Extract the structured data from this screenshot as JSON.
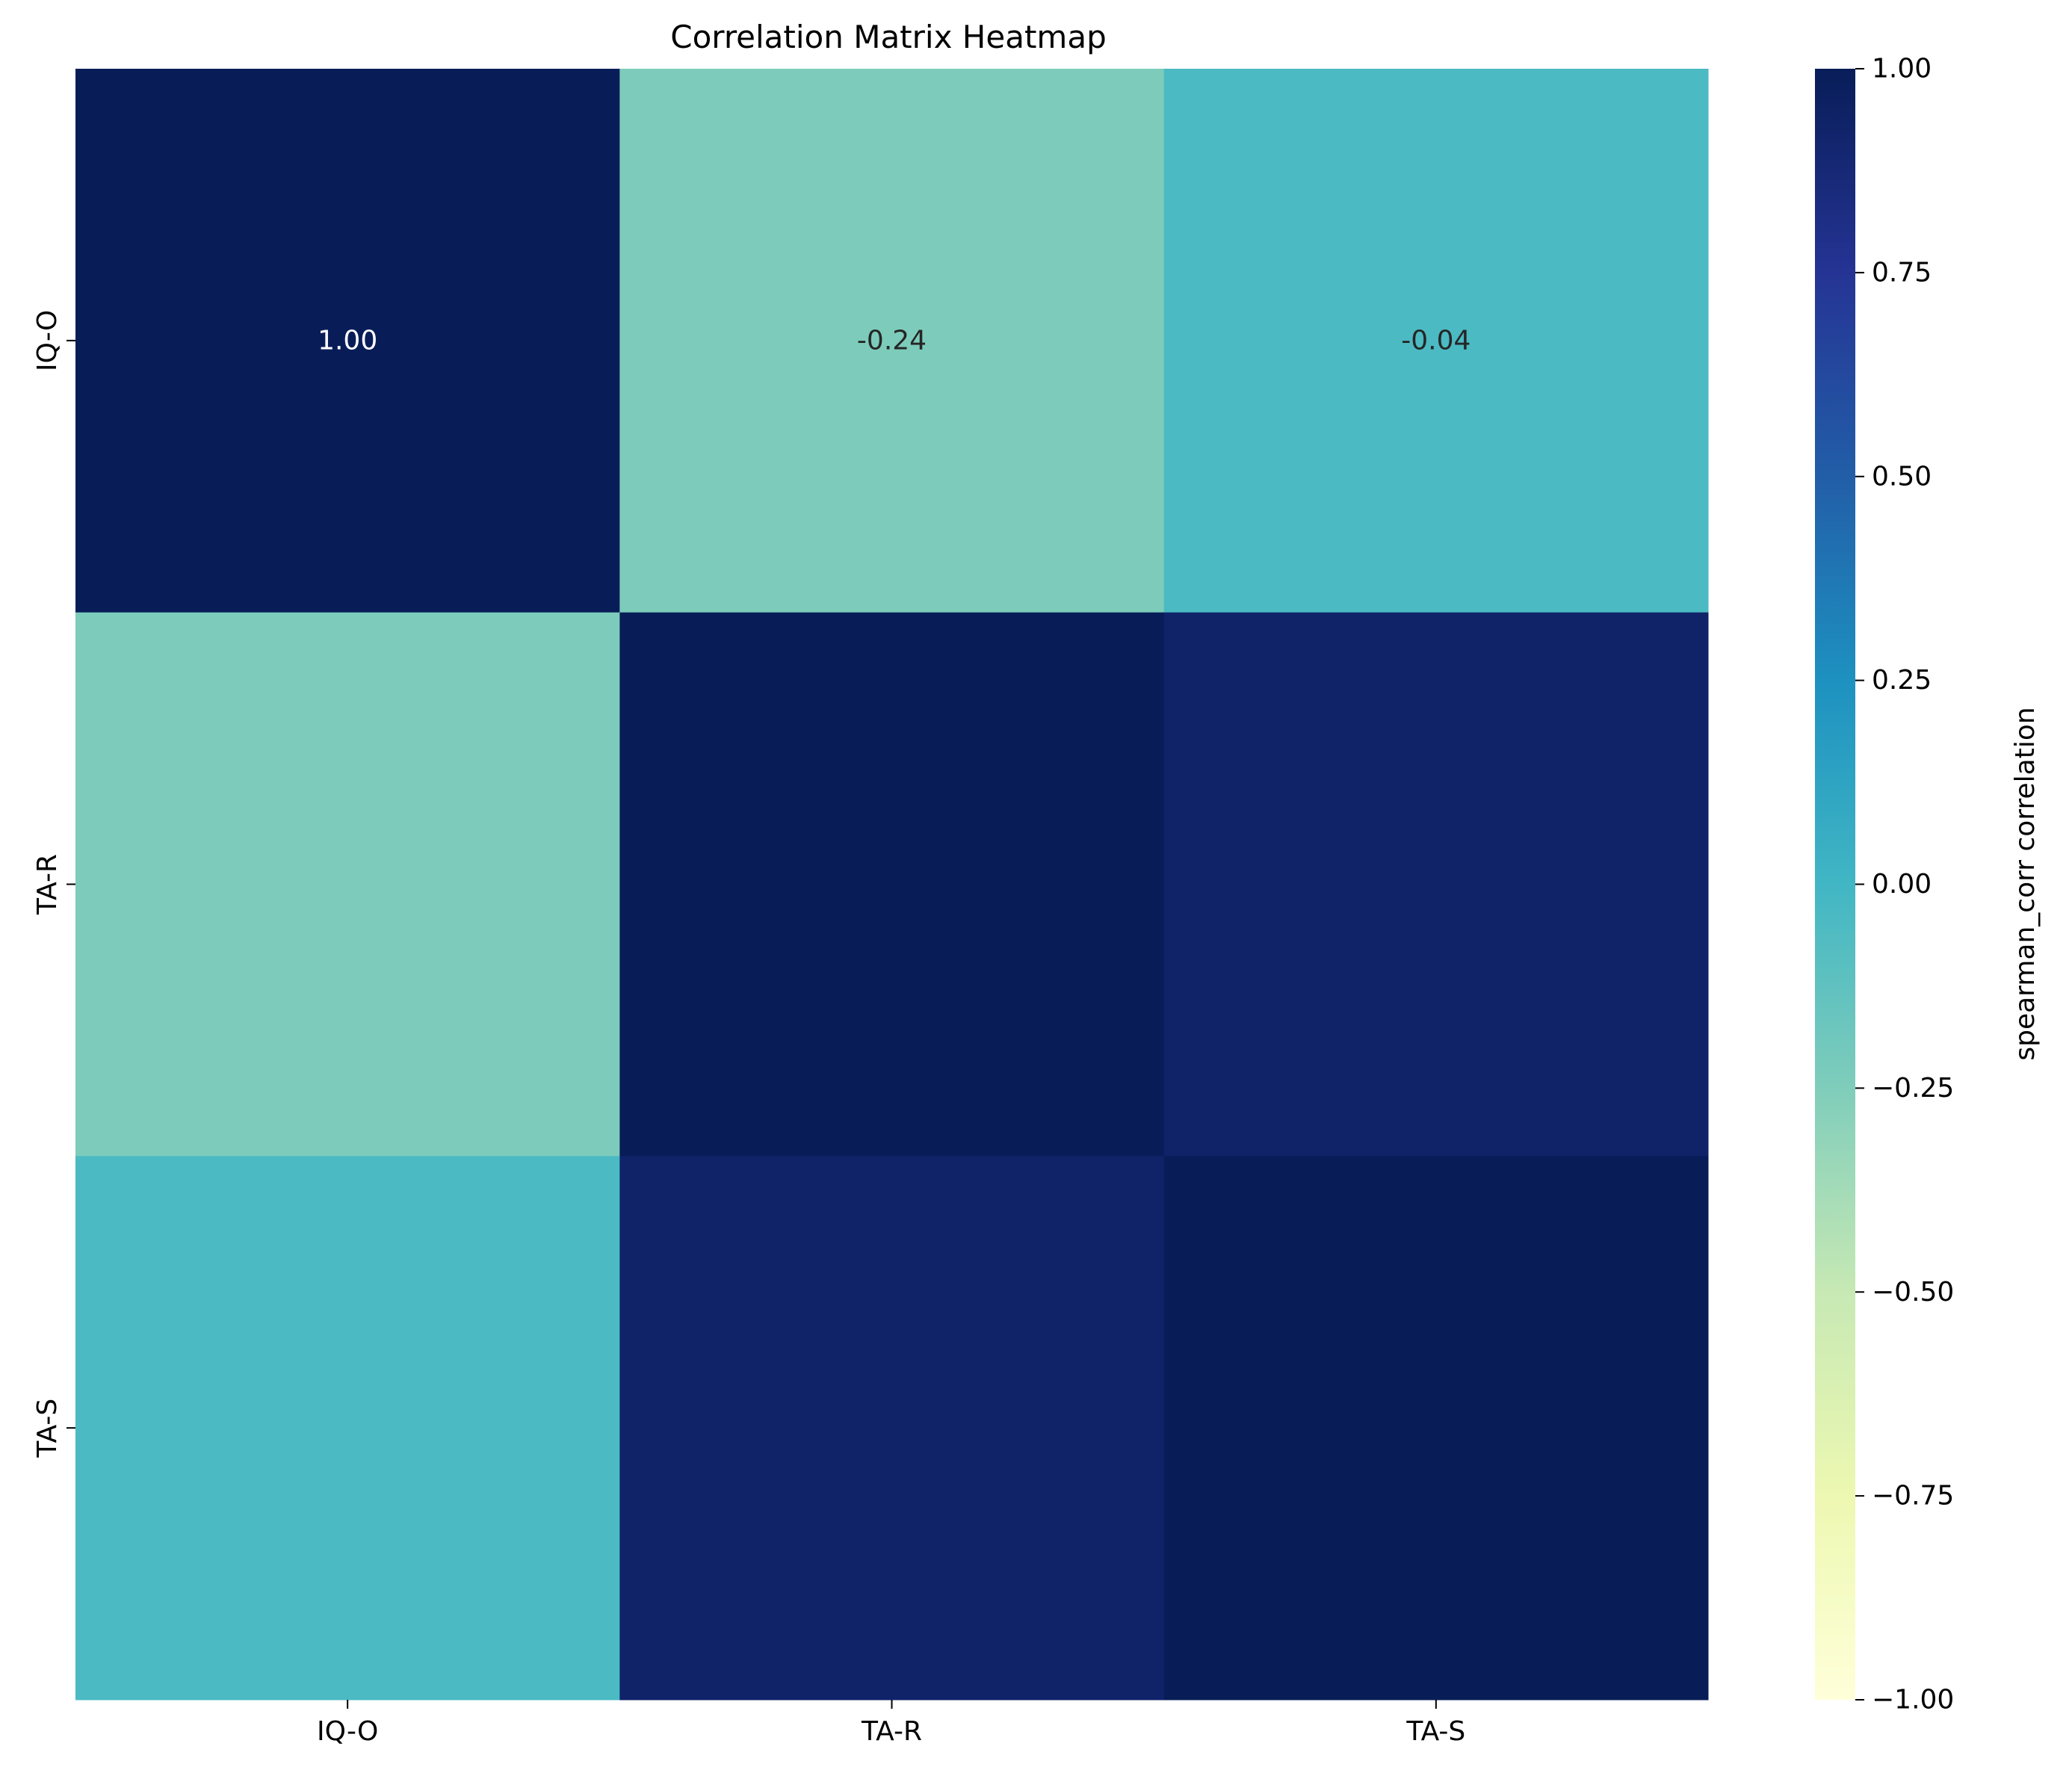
{
  "chart_data": {
    "type": "heatmap",
    "title": "Correlation Matrix Heatmap",
    "x_categories": [
      "IQ-O",
      "TA-R",
      "TA-S"
    ],
    "y_categories": [
      "IQ-O",
      "TA-R",
      "TA-S"
    ],
    "values": [
      [
        1.0,
        -0.24,
        -0.04
      ],
      [
        -0.24,
        1.0,
        0.93
      ],
      [
        -0.04,
        0.93,
        1.0
      ]
    ],
    "annotations": [
      [
        "1.00",
        "-0.24",
        "-0.04"
      ],
      [
        "",
        "",
        ""
      ],
      [
        "",
        "",
        ""
      ]
    ],
    "colormap": "YlGnBu",
    "vmin": -1.0,
    "vmax": 1.0,
    "colorbar": {
      "label": "spearman_corr correlation",
      "ticks": [
        "1.00",
        "0.75",
        "0.50",
        "0.25",
        "0.00",
        "−0.25",
        "−0.50",
        "−0.75",
        "−1.00"
      ],
      "tick_values": [
        1.0,
        0.75,
        0.5,
        0.25,
        0.0,
        -0.25,
        -0.5,
        -0.75,
        -1.0
      ],
      "position": "right"
    }
  }
}
